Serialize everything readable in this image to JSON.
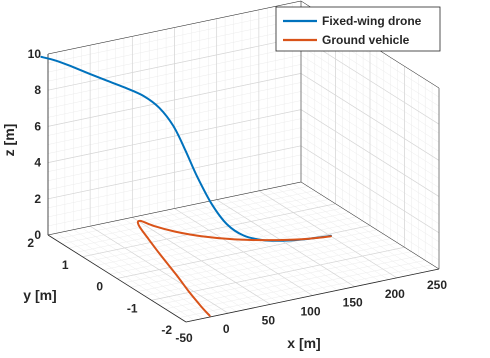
{
  "chart_data": {
    "type": "line",
    "title": "",
    "xlabel": "x [m]",
    "ylabel": "y [m]",
    "zlabel": "z [m]",
    "xlim": [
      -50,
      250
    ],
    "ylim": [
      -2,
      2
    ],
    "zlim": [
      0,
      10
    ],
    "x_ticks": [
      "-50",
      "0",
      "50",
      "100",
      "150",
      "200",
      "250"
    ],
    "y_ticks": [
      "-2",
      "-1",
      "0",
      "1",
      "2"
    ],
    "z_ticks": [
      "0",
      "2",
      "4",
      "6",
      "8",
      "10"
    ],
    "grid": true,
    "legend_position": "top-right",
    "series": [
      {
        "name": "Fixed-wing drone",
        "color": "#0072BD",
        "points": [
          [
            -60,
            1.95,
            10.0
          ],
          [
            -45,
            1.88,
            9.72
          ],
          [
            -30,
            1.78,
            9.36
          ],
          [
            -15,
            1.66,
            8.98
          ],
          [
            0,
            1.52,
            8.62
          ],
          [
            15,
            1.36,
            8.28
          ],
          [
            30,
            1.18,
            7.88
          ],
          [
            42,
            1.02,
            7.3
          ],
          [
            52,
            0.86,
            6.4
          ],
          [
            60,
            0.72,
            5.2
          ],
          [
            68,
            0.56,
            3.8
          ],
          [
            78,
            0.38,
            2.4
          ],
          [
            90,
            0.24,
            1.35
          ],
          [
            105,
            0.12,
            0.72
          ],
          [
            125,
            0.02,
            0.38
          ],
          [
            145,
            -0.03,
            0.22
          ],
          [
            165,
            -0.06,
            0.12
          ],
          [
            185,
            -0.08,
            0.06
          ],
          [
            200,
            -0.09,
            0.03
          ]
        ]
      },
      {
        "name": "Ground vehicle",
        "color": "#D95319",
        "points": [
          [
            200,
            -0.09,
            0
          ],
          [
            170,
            0.02,
            0
          ],
          [
            140,
            0.22,
            0
          ],
          [
            110,
            0.5,
            0
          ],
          [
            85,
            0.85,
            0
          ],
          [
            68,
            1.2,
            0
          ],
          [
            57,
            1.55,
            0
          ],
          [
            52,
            1.82,
            0
          ],
          [
            45,
            1.7,
            0
          ],
          [
            35,
            1.2,
            0
          ],
          [
            22,
            0.5,
            0
          ],
          [
            8,
            -0.3,
            0
          ],
          [
            -5,
            -1.0,
            0
          ],
          [
            -15,
            -1.6,
            0
          ],
          [
            -20,
            -1.95,
            0
          ]
        ]
      }
    ]
  }
}
